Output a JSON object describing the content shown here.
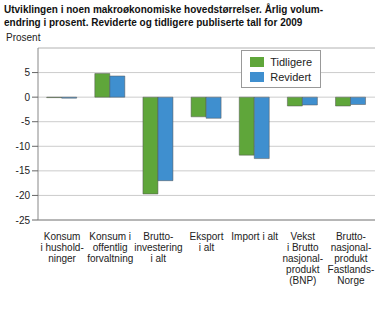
{
  "chart_data": {
    "type": "bar",
    "title": "Utviklingen i noen makroøkonomiske hovedstørrelser. Årlig volum-\nendring i prosent. Reviderte og tidligere publiserte tall for 2009",
    "y_label": "Prosent",
    "categories": [
      "Konsum\ni hushold-\nninger",
      "Konsum i\noffentlig\nforvaltning",
      "Brutto-\ninvestering\ni alt",
      "Eksport\ni alt",
      "Import i alt",
      "Vekst\ni Brutto\nnasjonal-\nprodukt\n(BNP)",
      "Brutto-\nnasjonal-\nprodukt\nFastlands-\nNorge"
    ],
    "series": [
      {
        "name": "Tidligere",
        "color": "#5fa63a",
        "values": [
          -0.1,
          4.8,
          -19.7,
          -4.0,
          -11.8,
          -1.8,
          -1.8
        ]
      },
      {
        "name": "Revidert",
        "color": "#3f8fcf",
        "values": [
          -0.2,
          4.3,
          -17.0,
          -4.3,
          -12.5,
          -1.6,
          -1.5
        ]
      }
    ],
    "ylim": [
      -25,
      10
    ],
    "yticks": [
      -25,
      -20,
      -15,
      -10,
      -5,
      0,
      5
    ],
    "grid": true,
    "legend": "top-right"
  }
}
